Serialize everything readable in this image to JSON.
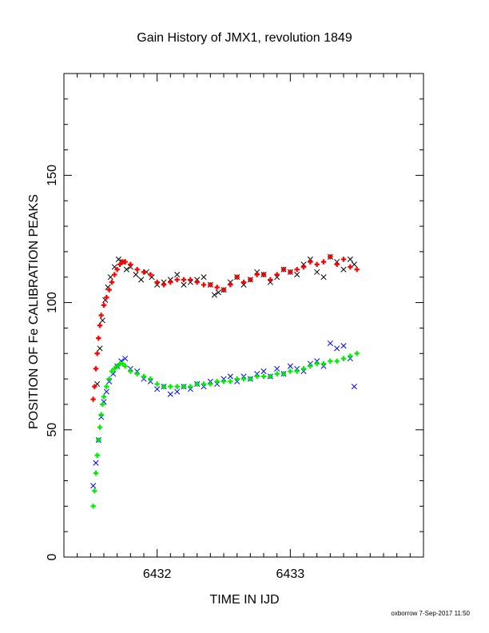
{
  "chart_data": {
    "type": "scatter",
    "title": "Gain History of JMX1, revolution 1849",
    "xlabel": "TIME IN IJD",
    "ylabel": "POSITION OF Fe CALIBRATION PEAKS",
    "footer": "oxborrow  7-Sep-2017 11:50",
    "xlim": [
      6431.3,
      6434.0
    ],
    "ylim": [
      0,
      190
    ],
    "x_ticks": [
      6432,
      6433
    ],
    "y_ticks": [
      0,
      50,
      100,
      150
    ],
    "grid": false,
    "legend": "none",
    "series": [
      {
        "marker": "x",
        "color": "#000000",
        "x": [
          6431.55,
          6431.57,
          6431.59,
          6431.61,
          6431.63,
          6431.65,
          6431.68,
          6431.71,
          6431.74,
          6431.77,
          6431.8,
          6431.84,
          6431.88,
          6431.92,
          6431.96,
          6432.0,
          6432.05,
          6432.1,
          6432.15,
          6432.2,
          6432.25,
          6432.3,
          6432.35,
          6432.4,
          6432.43,
          6432.46,
          6432.5,
          6432.55,
          6432.6,
          6432.65,
          6432.7,
          6432.75,
          6432.8,
          6432.85,
          6432.9,
          6432.95,
          6433.0,
          6433.05,
          6433.1,
          6433.15,
          6433.2,
          6433.25,
          6433.3,
          6433.35,
          6433.4,
          6433.45,
          6433.48
        ],
        "y": [
          68,
          82,
          93,
          101,
          106,
          110,
          114,
          117,
          116,
          113,
          114,
          111,
          109,
          112,
          110,
          107,
          108,
          109,
          111,
          107,
          108,
          109,
          110,
          107,
          103,
          104,
          105,
          108,
          110,
          107,
          109,
          112,
          111,
          108,
          110,
          113,
          112,
          111,
          115,
          117,
          112,
          110,
          118,
          116,
          113,
          117,
          115
        ]
      },
      {
        "marker": "+",
        "color": "#ff0000",
        "x": [
          6431.52,
          6431.53,
          6431.54,
          6431.55,
          6431.56,
          6431.57,
          6431.58,
          6431.6,
          6431.62,
          6431.64,
          6431.66,
          6431.68,
          6431.7,
          6431.72,
          6431.74,
          6431.76,
          6431.8,
          6431.85,
          6431.9,
          6431.95,
          6432.0,
          6432.05,
          6432.1,
          6432.15,
          6432.2,
          6432.25,
          6432.3,
          6432.35,
          6432.4,
          6432.45,
          6432.5,
          6432.55,
          6432.6,
          6432.65,
          6432.7,
          6432.75,
          6432.8,
          6432.85,
          6432.9,
          6432.95,
          6433.0,
          6433.05,
          6433.1,
          6433.15,
          6433.2,
          6433.25,
          6433.3,
          6433.35,
          6433.4,
          6433.45,
          6433.5
        ],
        "y": [
          62,
          67,
          74,
          80,
          86,
          91,
          95,
          99,
          102,
          105,
          108,
          111,
          113,
          115,
          116,
          116,
          115,
          113,
          112,
          111,
          108,
          107,
          108,
          109,
          109,
          109,
          108,
          107,
          107,
          106,
          105,
          107,
          110,
          108,
          109,
          111,
          111,
          109,
          111,
          113,
          112,
          113,
          114,
          116,
          115,
          116,
          118,
          115,
          117,
          114,
          113
        ]
      },
      {
        "marker": "x",
        "color": "#0000ff",
        "x": [
          6431.52,
          6431.54,
          6431.56,
          6431.58,
          6431.6,
          6431.62,
          6431.64,
          6431.67,
          6431.7,
          6431.73,
          6431.76,
          6431.8,
          6431.85,
          6431.9,
          6431.95,
          6432.0,
          6432.05,
          6432.1,
          6432.15,
          6432.2,
          6432.25,
          6432.3,
          6432.35,
          6432.4,
          6432.45,
          6432.5,
          6432.55,
          6432.6,
          6432.65,
          6432.7,
          6432.75,
          6432.8,
          6432.85,
          6432.9,
          6432.95,
          6433.0,
          6433.05,
          6433.1,
          6433.15,
          6433.2,
          6433.25,
          6433.3,
          6433.35,
          6433.4,
          6433.45,
          6433.48
        ],
        "y": [
          28,
          37,
          46,
          55,
          61,
          65,
          69,
          72,
          75,
          77,
          78,
          74,
          73,
          70,
          69,
          66,
          67,
          64,
          65,
          67,
          66,
          68,
          67,
          69,
          68,
          70,
          71,
          69,
          71,
          70,
          72,
          73,
          71,
          74,
          72,
          75,
          74,
          73,
          76,
          77,
          75,
          84,
          82,
          83,
          78,
          67
        ]
      },
      {
        "marker": "+",
        "color": "#00ee00",
        "x": [
          6431.52,
          6431.53,
          6431.54,
          6431.55,
          6431.56,
          6431.57,
          6431.58,
          6431.59,
          6431.6,
          6431.62,
          6431.64,
          6431.66,
          6431.68,
          6431.7,
          6431.72,
          6431.74,
          6431.76,
          6431.8,
          6431.85,
          6431.9,
          6431.95,
          6432.0,
          6432.05,
          6432.1,
          6432.15,
          6432.2,
          6432.25,
          6432.3,
          6432.35,
          6432.4,
          6432.45,
          6432.5,
          6432.55,
          6432.6,
          6432.65,
          6432.7,
          6432.75,
          6432.8,
          6432.85,
          6432.9,
          6432.95,
          6433.0,
          6433.05,
          6433.1,
          6433.15,
          6433.2,
          6433.25,
          6433.3,
          6433.35,
          6433.4,
          6433.45,
          6433.5
        ],
        "y": [
          20,
          26,
          33,
          40,
          46,
          51,
          56,
          60,
          63,
          67,
          70,
          73,
          74,
          75,
          76,
          76,
          75,
          73,
          72,
          71,
          70,
          68,
          67,
          67,
          67,
          67,
          67,
          68,
          68,
          68,
          69,
          69,
          69,
          70,
          70,
          70,
          71,
          71,
          71,
          72,
          72,
          73,
          73,
          74,
          75,
          76,
          76,
          77,
          77,
          78,
          79,
          80
        ]
      }
    ]
  }
}
